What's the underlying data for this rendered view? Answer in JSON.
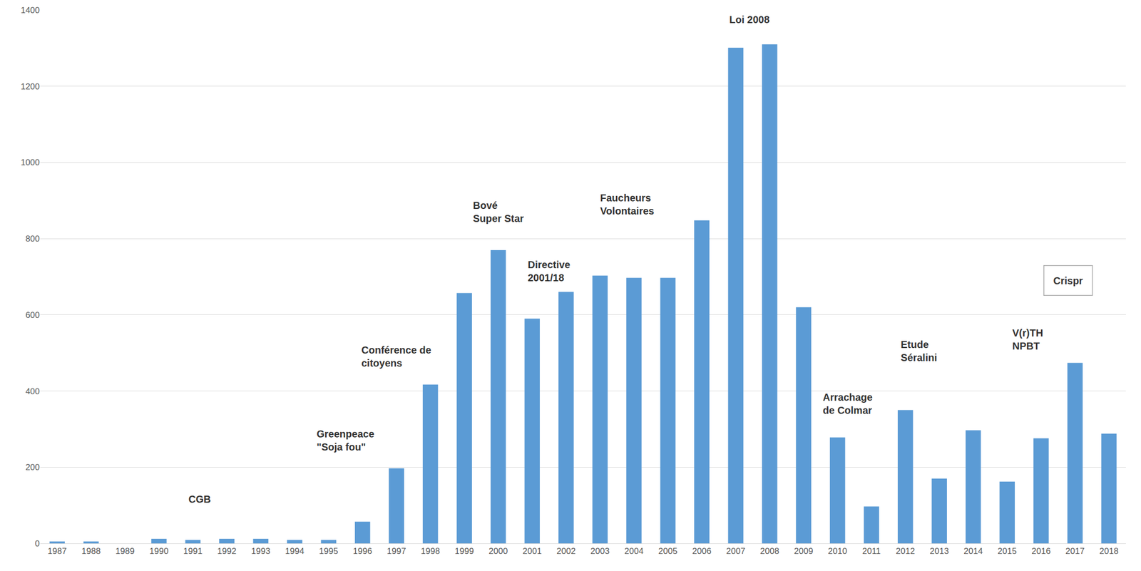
{
  "chart_data": {
    "type": "bar",
    "categories": [
      "1987",
      "1988",
      "1989",
      "1990",
      "1991",
      "1992",
      "1993",
      "1994",
      "1995",
      "1996",
      "1997",
      "1998",
      "1999",
      "2000",
      "2001",
      "2002",
      "2003",
      "2004",
      "2005",
      "2006",
      "2007",
      "2008",
      "2009",
      "2010",
      "2011",
      "2012",
      "2013",
      "2014",
      "2015",
      "2016",
      "2017",
      "2018"
    ],
    "values": [
      5,
      5,
      0,
      12,
      9,
      12,
      12,
      9,
      9,
      57,
      197,
      417,
      657,
      770,
      590,
      660,
      703,
      697,
      697,
      848,
      1301,
      1310,
      620,
      278,
      97,
      350,
      170,
      297,
      162,
      276,
      474,
      288
    ],
    "color": "#5b9bd5",
    "ylim": [
      0,
      1400
    ],
    "yticks": [
      0,
      200,
      400,
      600,
      800,
      1000,
      1200,
      1400
    ],
    "grid": true,
    "annotations": [
      "CGB",
      "Greenpeace\n\"Soja fou\"",
      "Conférence de\ncitoyens",
      "Bové\nSuper Star",
      "Directive\n2001/18",
      "Faucheurs\nVolontaires",
      "Loi 2008",
      "Arrachage\nde Colmar",
      "Etude\nSéralini",
      "V(r)TH\nNPBT",
      "Crispr"
    ]
  }
}
